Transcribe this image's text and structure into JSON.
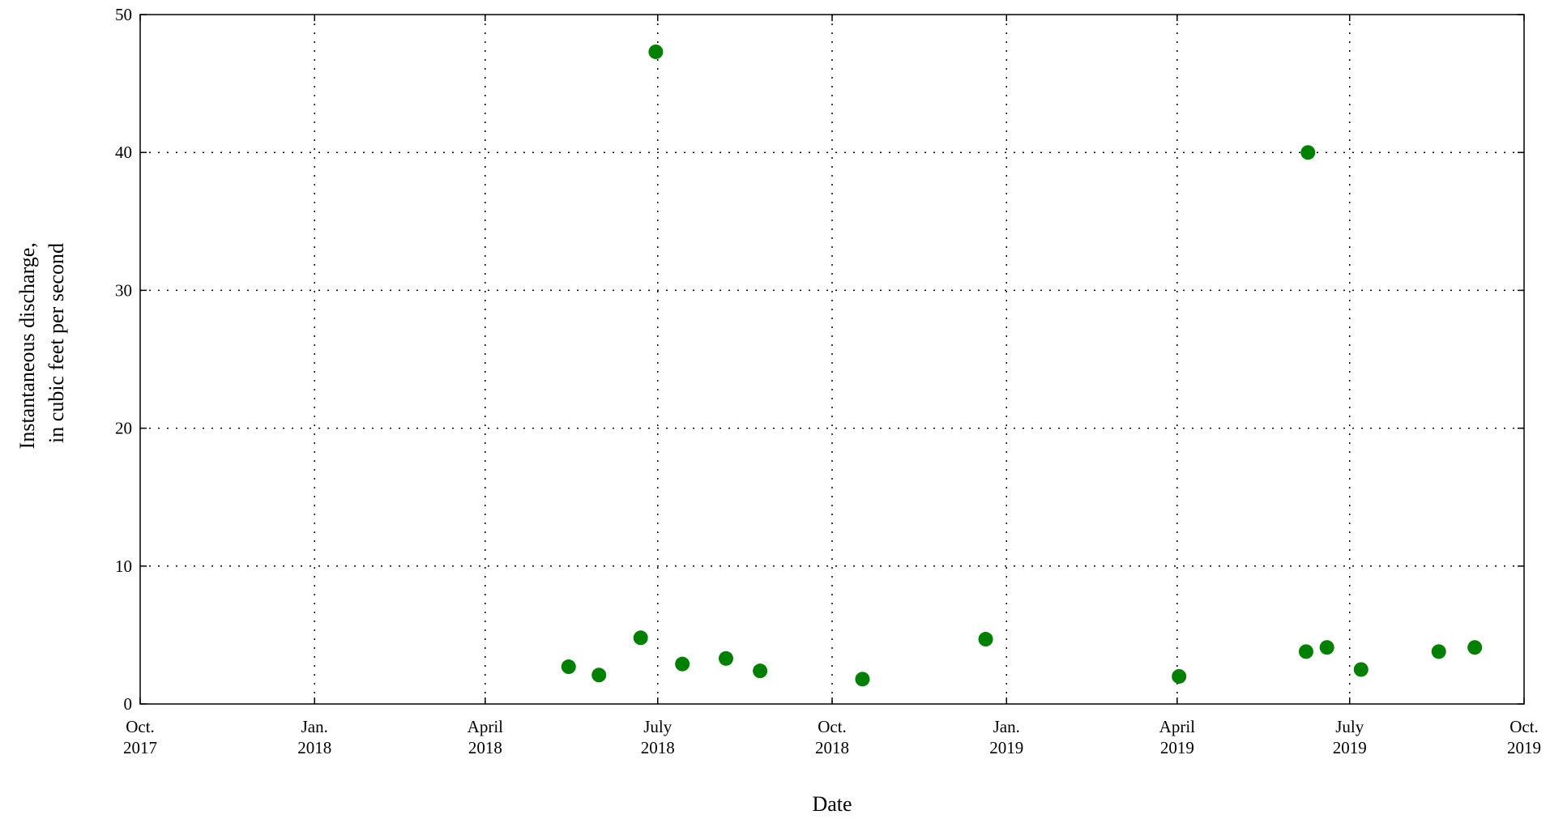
{
  "chart_data": {
    "type": "scatter",
    "title": "",
    "xlabel": "Date",
    "ylabel": [
      "Instantaneous discharge,",
      "in cubic feet per second"
    ],
    "ylim": [
      0,
      50
    ],
    "yticks": [
      0,
      10,
      20,
      30,
      40,
      50
    ],
    "xlim": [
      "2017-10-01",
      "2019-10-01"
    ],
    "xticks": [
      {
        "date": "2017-10-01",
        "label": [
          "Oct.",
          "2017"
        ]
      },
      {
        "date": "2018-01-01",
        "label": [
          "Jan.",
          "2018"
        ]
      },
      {
        "date": "2018-04-01",
        "label": [
          "April",
          "2018"
        ]
      },
      {
        "date": "2018-07-01",
        "label": [
          "July",
          "2018"
        ]
      },
      {
        "date": "2018-10-01",
        "label": [
          "Oct.",
          "2018"
        ]
      },
      {
        "date": "2019-01-01",
        "label": [
          "Jan.",
          "2019"
        ]
      },
      {
        "date": "2019-04-01",
        "label": [
          "April",
          "2019"
        ]
      },
      {
        "date": "2019-07-01",
        "label": [
          "July",
          "2019"
        ]
      },
      {
        "date": "2019-10-01",
        "label": [
          "Oct.",
          "2019"
        ]
      }
    ],
    "grid": true,
    "marker_color": "#008000",
    "series": [
      {
        "points": [
          {
            "x": "2018-05-15",
            "y": 2.7
          },
          {
            "x": "2018-05-31",
            "y": 2.1
          },
          {
            "x": "2018-06-22",
            "y": 4.8
          },
          {
            "x": "2018-06-30",
            "y": 47.3
          },
          {
            "x": "2018-07-14",
            "y": 2.9
          },
          {
            "x": "2018-08-06",
            "y": 3.3
          },
          {
            "x": "2018-08-24",
            "y": 2.4
          },
          {
            "x": "2018-10-17",
            "y": 1.8
          },
          {
            "x": "2018-12-21",
            "y": 4.7
          },
          {
            "x": "2019-04-02",
            "y": 2.0
          },
          {
            "x": "2019-06-08",
            "y": 3.8
          },
          {
            "x": "2019-06-09",
            "y": 40.0
          },
          {
            "x": "2019-06-19",
            "y": 4.1
          },
          {
            "x": "2019-07-07",
            "y": 2.5
          },
          {
            "x": "2019-08-17",
            "y": 3.8
          },
          {
            "x": "2019-09-05",
            "y": 4.1
          }
        ]
      }
    ]
  }
}
